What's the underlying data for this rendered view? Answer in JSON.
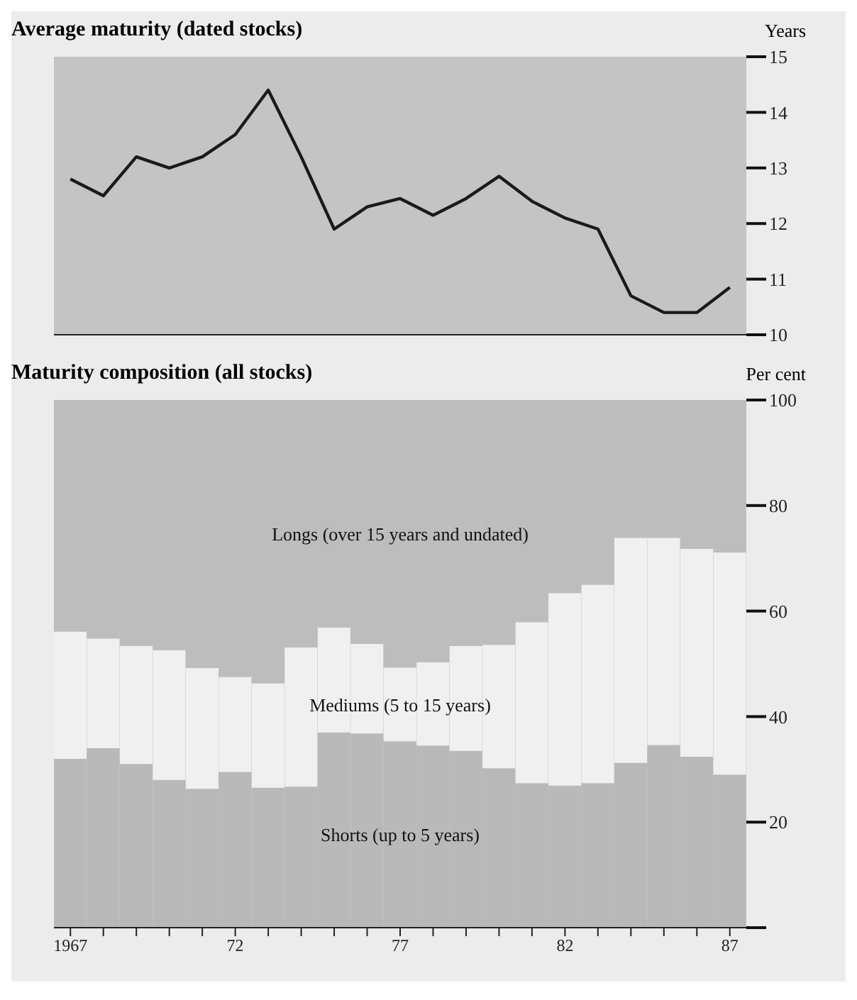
{
  "chart_data": [
    {
      "type": "line",
      "title": "Average maturity (dated stocks)",
      "ylabel": "Years",
      "categories": [
        "1967",
        null,
        null,
        null,
        null,
        "72",
        null,
        null,
        null,
        null,
        "77",
        null,
        null,
        null,
        null,
        "82",
        null,
        null,
        null,
        null,
        "87"
      ],
      "series": [
        {
          "color": "#1a1a1a",
          "values": [
            12.8,
            12.5,
            13.2,
            13.0,
            13.2,
            13.6,
            14.4,
            13.2,
            11.9,
            12.3,
            12.45,
            12.15,
            12.45,
            12.85,
            12.4,
            12.1,
            11.9,
            10.7,
            10.4,
            10.4,
            10.85
          ]
        }
      ],
      "ylim": [
        10,
        15
      ],
      "yticks": [
        10,
        11,
        12,
        13,
        14,
        15
      ],
      "legend": false,
      "marker": "none",
      "line_style": "solid",
      "tick_labels": "y"
    },
    {
      "type": "bar",
      "stacked": true,
      "title": "Maturity composition (all stocks)",
      "ylabel": "Per cent",
      "categories": [
        "1967",
        null,
        null,
        null,
        null,
        "72",
        null,
        null,
        null,
        null,
        "77",
        null,
        null,
        null,
        null,
        "82",
        null,
        null,
        null,
        null,
        "87"
      ],
      "series": [
        {
          "name": "Shorts (up to 5 years)",
          "color": "#b9b9b9",
          "values": [
            32,
            34,
            31,
            28,
            26.3,
            29.5,
            26.5,
            26.7,
            37,
            36.8,
            35.3,
            34.5,
            33.5,
            30.2,
            27.4,
            26.9,
            27.4,
            31.2,
            34.6,
            32.4,
            29
          ]
        },
        {
          "name": "Mediums (5 to 15 years)",
          "color": "#f0f0f0",
          "values": [
            24.1,
            20.8,
            22.4,
            24.6,
            22.9,
            18,
            19.8,
            26.4,
            19.9,
            17,
            14,
            15.8,
            19.9,
            23.4,
            30.5,
            36.5,
            37.6,
            42.7,
            39.3,
            39.4,
            42.1
          ]
        },
        {
          "name": "Longs (over 15 years and undated)",
          "color": "#bdbdbd",
          "values": [
            43.9,
            45.2,
            46.6,
            47.4,
            50.8,
            52.5,
            53.7,
            46.9,
            43.1,
            46.2,
            50.7,
            49.7,
            46.6,
            46.4,
            42.1,
            36.6,
            35,
            26.1,
            26.1,
            28.2,
            28.9
          ]
        }
      ],
      "ylim": [
        0,
        100
      ],
      "yticks": [
        {
          "value": 0,
          "label": null
        },
        20,
        40,
        60,
        80,
        100
      ],
      "legend": false
    }
  ]
}
